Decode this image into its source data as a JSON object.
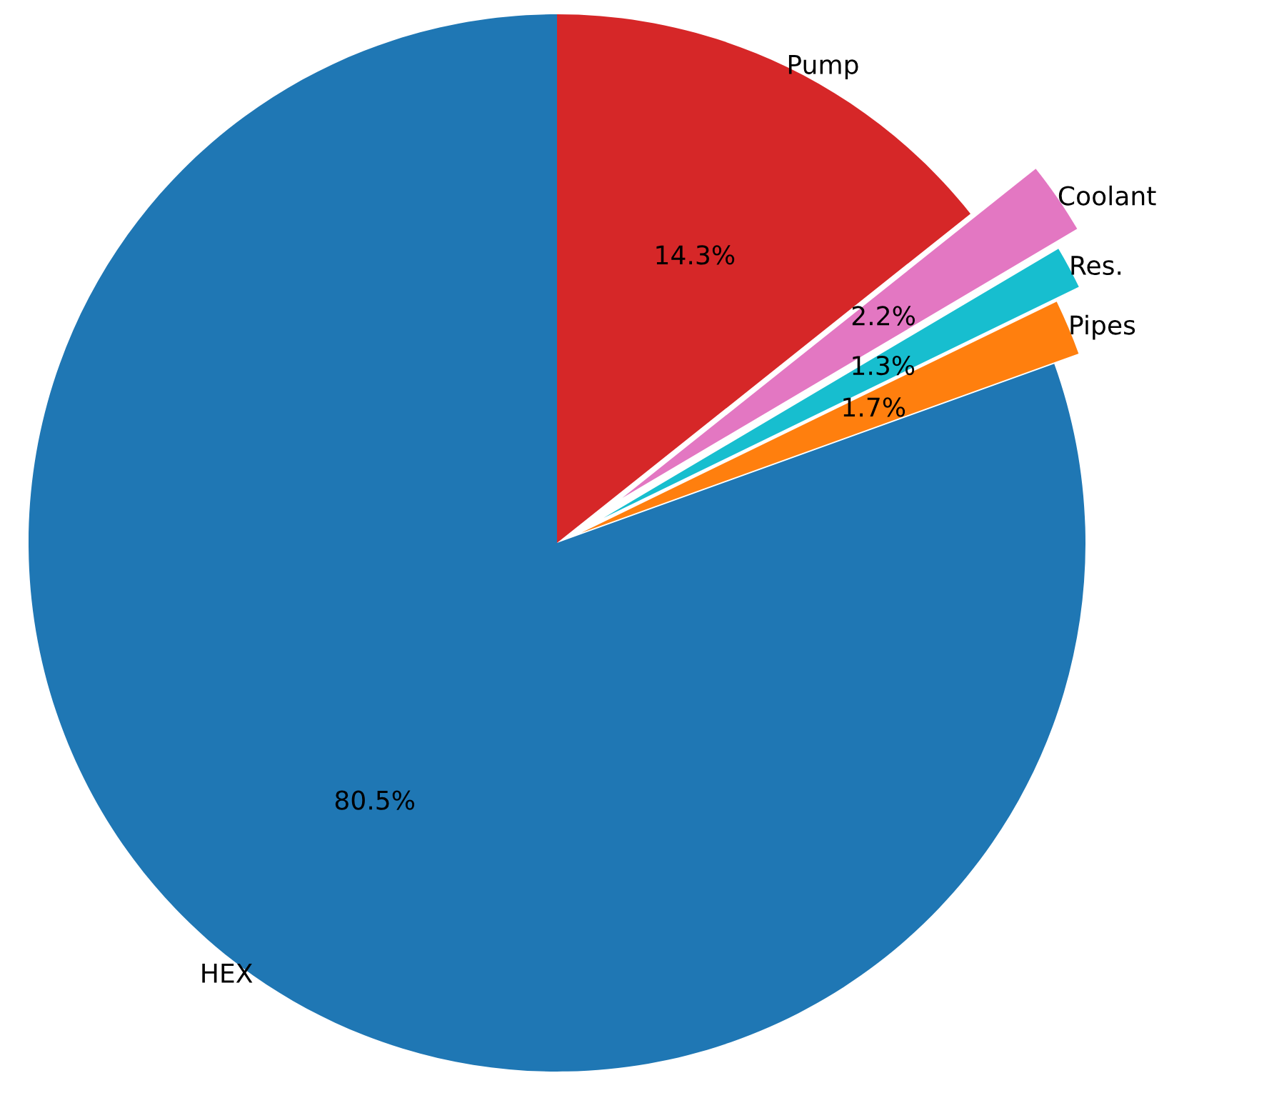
{
  "chart_data": {
    "type": "pie",
    "categories": [
      "HEX",
      "Pipes",
      "Res.",
      "Coolant",
      "Pump"
    ],
    "values": [
      80.5,
      1.7,
      1.3,
      2.2,
      14.3
    ],
    "value_labels": [
      "80.5%",
      "1.7%",
      "1.3%",
      "2.2%",
      "14.3%"
    ],
    "colors": [
      "#1f77b4",
      "#ff7f0e",
      "#17becf",
      "#e377c2",
      "#d62728"
    ]
  }
}
